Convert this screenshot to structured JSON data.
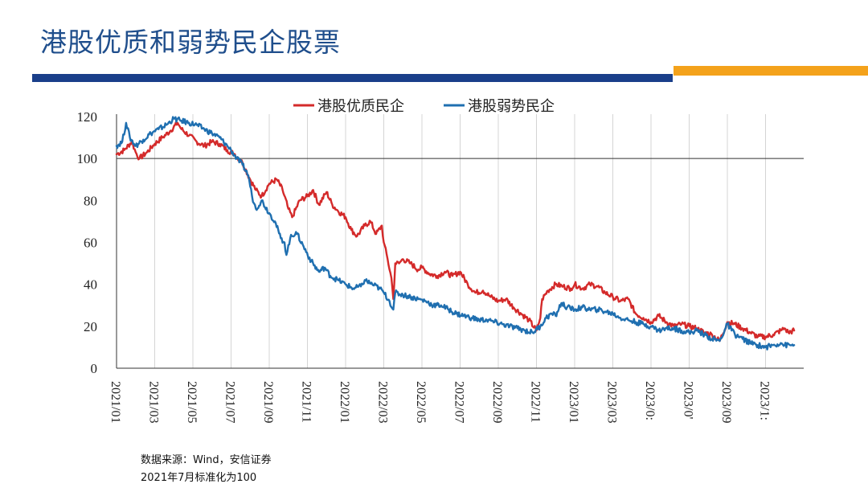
{
  "page": {
    "title": "港股优质和弱势民企股票",
    "accent_blue": "#1a3f8a",
    "accent_orange": "#f4a21b"
  },
  "chart_data": {
    "type": "line",
    "title": "",
    "xlabel": "",
    "ylabel": "",
    "ylim": [
      0,
      120
    ],
    "yticks": [
      0,
      20,
      40,
      60,
      80,
      100,
      120
    ],
    "grid": "vertical",
    "legend_position": "top",
    "baseline_value": 100,
    "x_range": [
      0,
      36
    ],
    "xticks": [
      {
        "label": "2021/01",
        "t": 0
      },
      {
        "label": "2021/03",
        "t": 2
      },
      {
        "label": "2021/05",
        "t": 4
      },
      {
        "label": "2021/07",
        "t": 6
      },
      {
        "label": "2021/09",
        "t": 8
      },
      {
        "label": "2021/11",
        "t": 10
      },
      {
        "label": "2022/01",
        "t": 12
      },
      {
        "label": "2022/03",
        "t": 14
      },
      {
        "label": "2022/05",
        "t": 16
      },
      {
        "label": "2022/07",
        "t": 18
      },
      {
        "label": "2022/09",
        "t": 20
      },
      {
        "label": "2022/11",
        "t": 22
      },
      {
        "label": "2023/01",
        "t": 24
      },
      {
        "label": "2023/03",
        "t": 26
      },
      {
        "label": "2023/0:",
        "t": 28
      },
      {
        "label": "2023/0'",
        "t": 30
      },
      {
        "label": "2023/09",
        "t": 32
      },
      {
        "label": "2023/1:",
        "t": 34
      }
    ],
    "series": [
      {
        "name": "港股优质民企",
        "color": "#d42a2a",
        "points": [
          [
            0,
            102
          ],
          [
            0.4,
            104
          ],
          [
            0.8,
            108
          ],
          [
            1.0,
            103
          ],
          [
            1.2,
            100
          ],
          [
            1.6,
            103
          ],
          [
            2.0,
            107
          ],
          [
            2.4,
            110
          ],
          [
            2.8,
            113
          ],
          [
            3.2,
            117
          ],
          [
            3.4,
            114
          ],
          [
            3.8,
            111
          ],
          [
            4.2,
            108
          ],
          [
            4.6,
            106
          ],
          [
            5.0,
            108
          ],
          [
            5.4,
            107
          ],
          [
            5.8,
            104
          ],
          [
            6.2,
            102
          ],
          [
            6.6,
            98
          ],
          [
            7.0,
            90
          ],
          [
            7.3,
            85
          ],
          [
            7.6,
            82
          ],
          [
            8.0,
            88
          ],
          [
            8.4,
            90
          ],
          [
            8.7,
            85
          ],
          [
            9.0,
            76
          ],
          [
            9.2,
            72
          ],
          [
            9.6,
            80
          ],
          [
            10.0,
            82
          ],
          [
            10.3,
            85
          ],
          [
            10.6,
            78
          ],
          [
            11.0,
            84
          ],
          [
            11.3,
            78
          ],
          [
            11.6,
            75
          ],
          [
            12.0,
            72
          ],
          [
            12.3,
            66
          ],
          [
            12.6,
            63
          ],
          [
            13.0,
            68
          ],
          [
            13.3,
            70
          ],
          [
            13.6,
            64
          ],
          [
            13.9,
            68
          ],
          [
            14.0,
            60
          ],
          [
            14.2,
            52
          ],
          [
            14.4,
            43
          ],
          [
            14.5,
            33
          ],
          [
            14.6,
            50
          ],
          [
            14.8,
            50
          ],
          [
            15.0,
            52
          ],
          [
            15.4,
            50
          ],
          [
            15.8,
            47
          ],
          [
            16.0,
            48
          ],
          [
            16.4,
            45
          ],
          [
            16.8,
            44
          ],
          [
            17.2,
            46
          ],
          [
            17.6,
            44
          ],
          [
            18.0,
            46
          ],
          [
            18.4,
            40
          ],
          [
            18.8,
            36
          ],
          [
            19.2,
            37
          ],
          [
            19.6,
            34
          ],
          [
            20.0,
            32
          ],
          [
            20.4,
            33
          ],
          [
            20.8,
            29
          ],
          [
            21.2,
            26
          ],
          [
            21.6,
            23
          ],
          [
            22.0,
            18
          ],
          [
            22.2,
            24
          ],
          [
            22.3,
            33
          ],
          [
            22.6,
            37
          ],
          [
            23.0,
            40
          ],
          [
            23.4,
            39
          ],
          [
            23.8,
            38
          ],
          [
            24.0,
            40
          ],
          [
            24.4,
            38
          ],
          [
            24.8,
            40
          ],
          [
            25.2,
            39
          ],
          [
            25.6,
            36
          ],
          [
            26.0,
            34
          ],
          [
            26.4,
            32
          ],
          [
            26.8,
            33
          ],
          [
            27.2,
            26
          ],
          [
            27.6,
            24
          ],
          [
            28.0,
            22
          ],
          [
            28.4,
            25
          ],
          [
            28.8,
            22
          ],
          [
            29.2,
            20
          ],
          [
            29.6,
            21
          ],
          [
            30.0,
            20
          ],
          [
            30.4,
            19
          ],
          [
            30.8,
            17
          ],
          [
            31.2,
            16
          ],
          [
            31.6,
            13
          ],
          [
            32.0,
            22
          ],
          [
            32.4,
            21
          ],
          [
            32.8,
            19
          ],
          [
            33.2,
            17
          ],
          [
            33.6,
            15
          ],
          [
            34.0,
            15
          ],
          [
            34.4,
            16
          ],
          [
            34.8,
            18
          ],
          [
            35.0,
            19
          ],
          [
            35.2,
            17
          ],
          [
            35.5,
            18
          ]
        ]
      },
      {
        "name": "港股弱势民企",
        "color": "#1f6fb0",
        "points": [
          [
            0,
            106
          ],
          [
            0.3,
            108
          ],
          [
            0.5,
            117
          ],
          [
            0.7,
            110
          ],
          [
            1.0,
            106
          ],
          [
            1.4,
            109
          ],
          [
            1.8,
            112
          ],
          [
            2.2,
            114
          ],
          [
            2.6,
            116
          ],
          [
            3.0,
            119
          ],
          [
            3.4,
            118
          ],
          [
            3.8,
            117
          ],
          [
            4.2,
            116
          ],
          [
            4.6,
            114
          ],
          [
            5.0,
            112
          ],
          [
            5.4,
            110
          ],
          [
            5.8,
            106
          ],
          [
            6.0,
            104
          ],
          [
            6.3,
            100
          ],
          [
            6.6,
            97
          ],
          [
            6.9,
            92
          ],
          [
            7.1,
            82
          ],
          [
            7.3,
            76
          ],
          [
            7.6,
            80
          ],
          [
            8.0,
            74
          ],
          [
            8.3,
            70
          ],
          [
            8.6,
            62
          ],
          [
            8.8,
            60
          ],
          [
            8.9,
            54
          ],
          [
            9.1,
            62
          ],
          [
            9.4,
            65
          ],
          [
            9.8,
            58
          ],
          [
            10.2,
            51
          ],
          [
            10.6,
            46
          ],
          [
            10.9,
            48
          ],
          [
            11.2,
            44
          ],
          [
            11.6,
            42
          ],
          [
            12.0,
            40
          ],
          [
            12.4,
            38
          ],
          [
            12.8,
            39
          ],
          [
            13.0,
            42
          ],
          [
            13.4,
            40
          ],
          [
            13.8,
            38
          ],
          [
            14.0,
            36
          ],
          [
            14.3,
            32
          ],
          [
            14.5,
            28
          ],
          [
            14.6,
            36
          ],
          [
            15.0,
            35
          ],
          [
            15.4,
            34
          ],
          [
            15.8,
            33
          ],
          [
            16.2,
            32
          ],
          [
            16.6,
            30
          ],
          [
            17.0,
            30
          ],
          [
            17.4,
            28
          ],
          [
            17.8,
            26
          ],
          [
            18.2,
            25
          ],
          [
            18.6,
            24
          ],
          [
            19.0,
            23
          ],
          [
            19.4,
            23
          ],
          [
            19.8,
            22
          ],
          [
            20.2,
            21
          ],
          [
            20.6,
            20
          ],
          [
            21.0,
            19
          ],
          [
            21.4,
            18
          ],
          [
            21.8,
            17
          ],
          [
            22.2,
            20
          ],
          [
            22.5,
            24
          ],
          [
            22.8,
            26
          ],
          [
            23.0,
            25
          ],
          [
            23.3,
            31
          ],
          [
            23.6,
            29
          ],
          [
            24.0,
            28
          ],
          [
            24.4,
            29
          ],
          [
            24.8,
            28
          ],
          [
            25.2,
            28
          ],
          [
            25.6,
            27
          ],
          [
            26.0,
            26
          ],
          [
            26.4,
            24
          ],
          [
            26.8,
            23
          ],
          [
            27.2,
            22
          ],
          [
            27.6,
            21
          ],
          [
            28.0,
            20
          ],
          [
            28.4,
            18
          ],
          [
            28.8,
            19
          ],
          [
            29.2,
            19
          ],
          [
            29.6,
            18
          ],
          [
            30.0,
            17
          ],
          [
            30.4,
            18
          ],
          [
            30.8,
            16
          ],
          [
            31.2,
            14
          ],
          [
            31.6,
            13
          ],
          [
            32.0,
            21
          ],
          [
            32.4,
            16
          ],
          [
            32.8,
            14
          ],
          [
            33.2,
            12
          ],
          [
            33.6,
            11
          ],
          [
            34.0,
            10
          ],
          [
            34.4,
            11
          ],
          [
            34.8,
            12
          ],
          [
            35.0,
            11
          ],
          [
            35.5,
            11
          ]
        ]
      }
    ]
  },
  "footer": {
    "source": "数据来源：Wind，安信证券",
    "note": "2021年7月标准化为100"
  }
}
